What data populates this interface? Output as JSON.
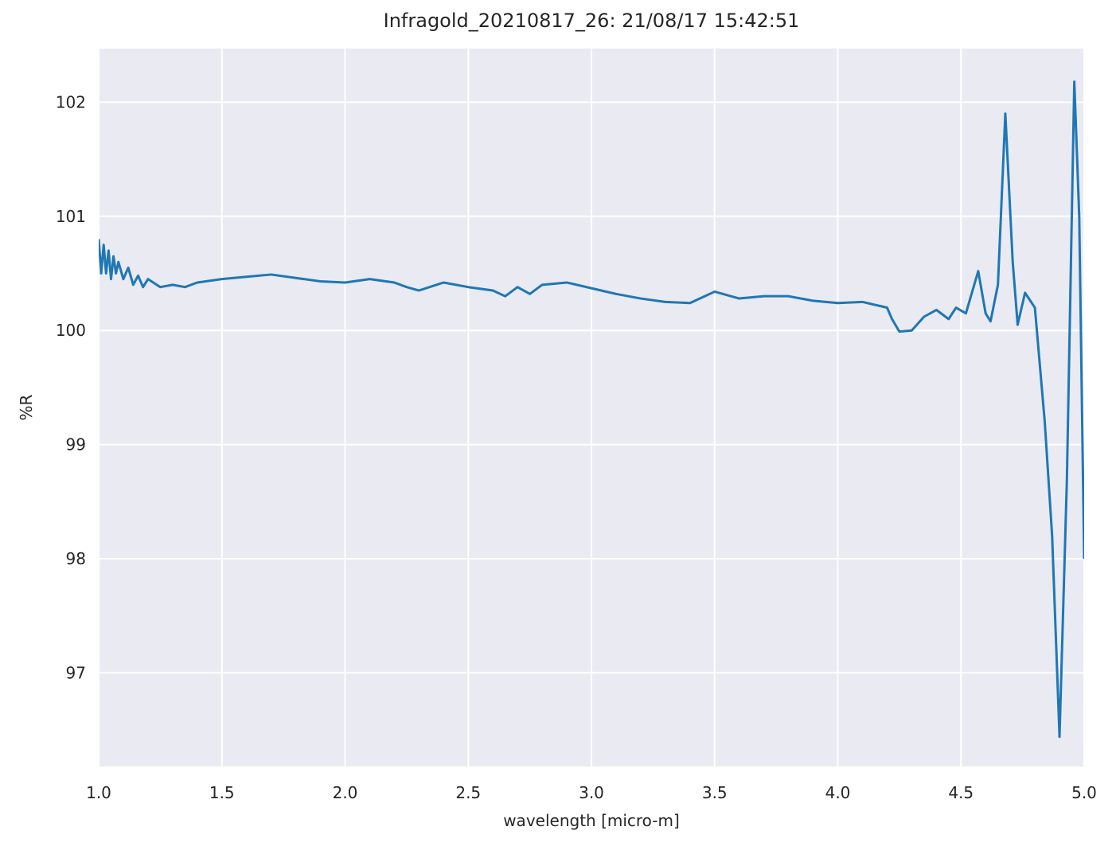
{
  "chart_data": {
    "type": "line",
    "title": "Infragold_20210817_26:  21/08/17 15:42:51",
    "xlabel": "wavelength [micro-m]",
    "ylabel": "%R",
    "xlim": [
      1,
      5
    ],
    "ylim": [
      96.18,
      102.47
    ],
    "xticks": [
      {
        "value": 1,
        "label": "1.0"
      },
      1.5,
      {
        "value": 2,
        "label": "2.0"
      },
      2.5,
      {
        "value": 3,
        "label": "3.0"
      },
      3.5,
      {
        "value": 4,
        "label": "4.0"
      },
      4.5,
      {
        "value": 5,
        "label": "5.0"
      }
    ],
    "yticks": [
      97,
      98,
      99,
      100,
      101,
      102
    ],
    "grid": true,
    "series": [
      {
        "color": "#1f77b4",
        "x": [
          1.0,
          1.01,
          1.02,
          1.03,
          1.04,
          1.05,
          1.06,
          1.07,
          1.08,
          1.1,
          1.12,
          1.14,
          1.16,
          1.18,
          1.2,
          1.25,
          1.3,
          1.35,
          1.4,
          1.5,
          1.6,
          1.7,
          1.8,
          1.9,
          2.0,
          2.1,
          2.2,
          2.25,
          2.3,
          2.4,
          2.5,
          2.6,
          2.65,
          2.7,
          2.75,
          2.8,
          2.9,
          3.0,
          3.1,
          3.2,
          3.3,
          3.4,
          3.5,
          3.6,
          3.7,
          3.8,
          3.9,
          4.0,
          4.1,
          4.2,
          4.22,
          4.25,
          4.3,
          4.35,
          4.4,
          4.45,
          4.48,
          4.52,
          4.57,
          4.6,
          4.62,
          4.65,
          4.68,
          4.71,
          4.73,
          4.76,
          4.8,
          4.84,
          4.87,
          4.9,
          4.93,
          4.96,
          4.98,
          5.0
        ],
        "values": [
          100.8,
          100.5,
          100.75,
          100.5,
          100.7,
          100.45,
          100.65,
          100.5,
          100.6,
          100.45,
          100.55,
          100.4,
          100.48,
          100.38,
          100.45,
          100.38,
          100.4,
          100.38,
          100.42,
          100.45,
          100.47,
          100.49,
          100.46,
          100.43,
          100.42,
          100.45,
          100.42,
          100.38,
          100.35,
          100.42,
          100.38,
          100.35,
          100.3,
          100.38,
          100.32,
          100.4,
          100.42,
          100.37,
          100.32,
          100.28,
          100.25,
          100.24,
          100.34,
          100.28,
          100.3,
          100.3,
          100.26,
          100.24,
          100.25,
          100.2,
          100.1,
          99.99,
          100.0,
          100.12,
          100.18,
          100.1,
          100.2,
          100.15,
          100.52,
          100.15,
          100.08,
          100.4,
          101.9,
          100.6,
          100.05,
          100.33,
          100.2,
          99.2,
          98.2,
          96.44,
          98.7,
          102.18,
          101.0,
          98.0
        ]
      }
    ]
  }
}
